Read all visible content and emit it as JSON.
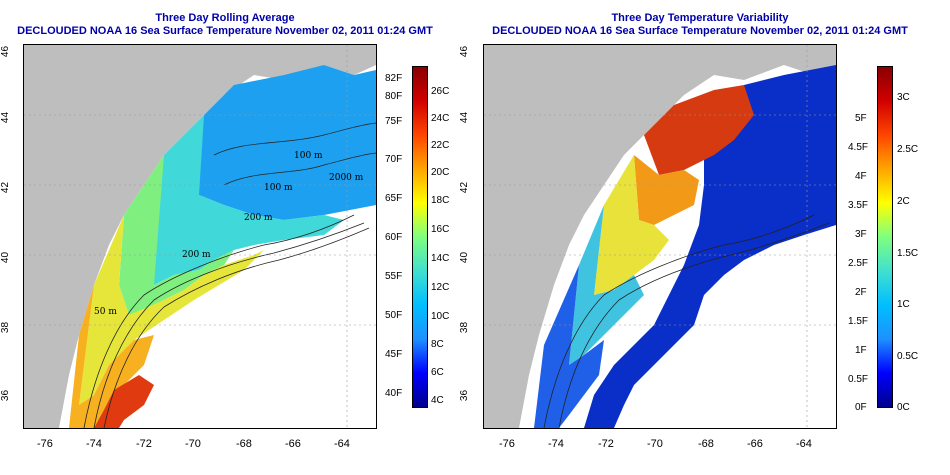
{
  "left_panel": {
    "title_line1": "Three Day Rolling Average",
    "title_line2": "DECLOUDED NOAA 16 Sea Surface Temperature November 02, 2011 01:24 GMT",
    "colorbar_f": [
      "82F",
      "80F",
      "75F",
      "70F",
      "65F",
      "60F",
      "55F",
      "50F",
      "45F",
      "40F"
    ],
    "colorbar_c": [
      "26C",
      "24C",
      "22C",
      "20C",
      "18C",
      "16C",
      "14C",
      "12C",
      "10C",
      "8C",
      "6C",
      "4C"
    ],
    "isobath_labels": [
      "100 m",
      "100 m",
      "2000 m",
      "200 m",
      "200 m",
      "50 m"
    ]
  },
  "right_panel": {
    "title_line1": "Three Day Temperature Variability",
    "title_line2": "DECLOUDED NOAA 16 Sea Surface Temperature November 02, 2011 01:24 GMT",
    "colorbar_f": [
      "5F",
      "4.5F",
      "4F",
      "3.5F",
      "3F",
      "2.5F",
      "2F",
      "1.5F",
      "1F",
      "0.5F",
      "0F"
    ],
    "colorbar_c": [
      "3C",
      "2.5C",
      "2C",
      "1.5C",
      "1C",
      "0.5C",
      "0C"
    ]
  },
  "axes": {
    "lon_ticks": [
      "-76",
      "-74",
      "-72",
      "-70",
      "-68",
      "-66",
      "-64"
    ],
    "lat_ticks": [
      "46",
      "44",
      "42",
      "40",
      "38",
      "36"
    ]
  },
  "colors": {
    "land": "#bebebe",
    "title": "#0000a8",
    "sst_scale": [
      "#00008b",
      "#0000ff",
      "#1e90ff",
      "#00bfff",
      "#40e0d0",
      "#7fff7f",
      "#ffff00",
      "#ffa500",
      "#ff4500",
      "#cc0000",
      "#8b0000"
    ]
  }
}
